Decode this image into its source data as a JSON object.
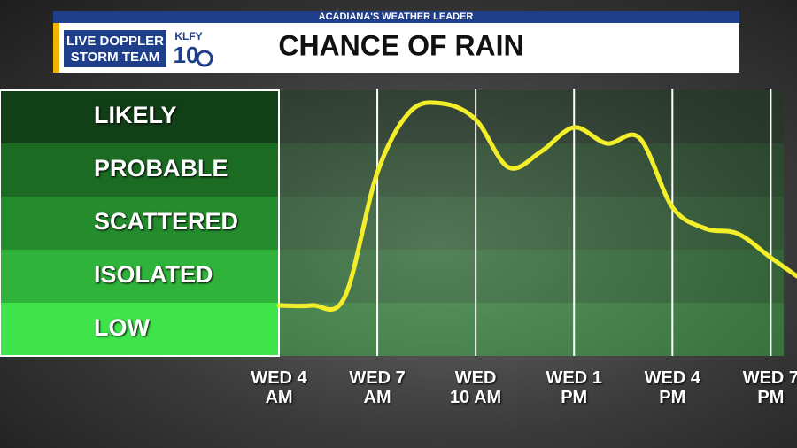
{
  "header": {
    "tagline": "ACADIANA'S WEATHER LEADER",
    "brand_line1": "LIVE DOPPLER",
    "brand_line2": "STORM TEAM",
    "station": "KLFY",
    "channel": "10"
  },
  "chart_data": {
    "type": "line",
    "title": "CHANCE OF RAIN",
    "x": [
      4,
      5,
      6,
      7,
      8,
      9,
      10,
      11,
      12,
      13,
      14,
      15,
      16,
      17,
      18,
      19,
      19.8
    ],
    "series": [
      {
        "name": "Chance of rain",
        "color": "#f2ee2a",
        "values": [
          0.95,
          0.95,
          1.1,
          3.45,
          4.6,
          4.75,
          4.45,
          3.55,
          3.85,
          4.3,
          4.0,
          4.1,
          2.8,
          2.4,
          2.3,
          1.85,
          1.5
        ]
      }
    ],
    "xlim": [
      4,
      19.8
    ],
    "xticks": [
      {
        "value": 4,
        "label": "WED 4 AM"
      },
      {
        "value": 7,
        "label": "WED 7 AM"
      },
      {
        "value": 10,
        "label": "WED 10 AM"
      },
      {
        "value": 13,
        "label": "WED 1 PM"
      },
      {
        "value": 16,
        "label": "WED 4 PM"
      },
      {
        "value": 19,
        "label": "WED 7 PM"
      }
    ],
    "ylim": [
      0,
      5
    ],
    "yticks": [
      {
        "value": 0.5,
        "label": "LOW"
      },
      {
        "value": 1.5,
        "label": "ISOLATED"
      },
      {
        "value": 2.5,
        "label": "SCATTERED"
      },
      {
        "value": 3.5,
        "label": "PROBABLE"
      },
      {
        "value": 4.5,
        "label": "LIKELY"
      }
    ],
    "band_colors": [
      "#3fe44b",
      "#2fb33a",
      "#248c2d",
      "#1b6b23",
      "#113f16"
    ],
    "grid": true
  }
}
